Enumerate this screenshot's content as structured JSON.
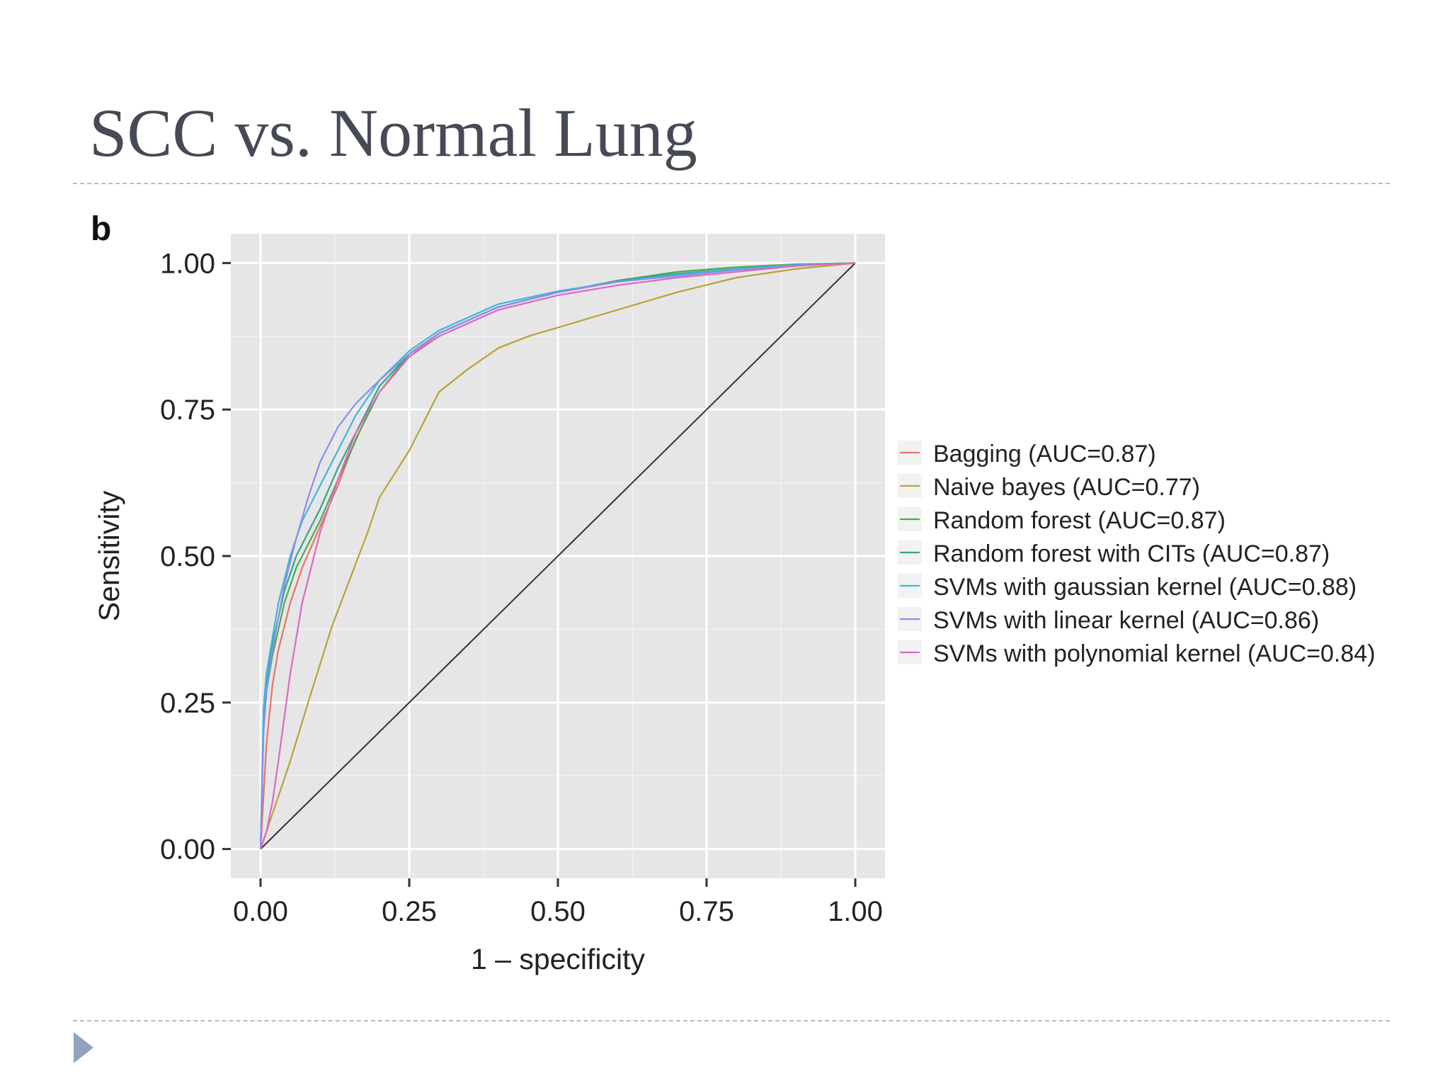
{
  "slide": {
    "title": "SCC vs. Normal Lung",
    "panel_label": "b"
  },
  "colors": {
    "panel_bg": "#e6e6e6",
    "grid_major": "#ffffff",
    "grid_minor": "#f2f2f2",
    "diagonal": "#333333",
    "rule": "#b4bcc8",
    "bullet": "#93a3bd"
  },
  "chart_data": {
    "type": "line",
    "xlabel": "1 – specificity",
    "ylabel": "Sensitivity",
    "xlim": [
      -0.05,
      1.05
    ],
    "ylim": [
      -0.05,
      1.05
    ],
    "xticks": [
      "0.00",
      "0.25",
      "0.50",
      "0.75",
      "1.00"
    ],
    "yticks": [
      "0.00",
      "0.25",
      "0.50",
      "0.75",
      "1.00"
    ],
    "grid": true,
    "legend_position": "right",
    "reference_line": {
      "x": [
        0,
        1
      ],
      "y": [
        0,
        1
      ]
    },
    "series": [
      {
        "name": "Bagging (AUC=0.87)",
        "color": "#e8746c",
        "x": [
          0,
          0.01,
          0.02,
          0.03,
          0.05,
          0.07,
          0.1,
          0.13,
          0.16,
          0.2,
          0.25,
          0.3,
          0.4,
          0.5,
          0.6,
          0.7,
          0.8,
          0.9,
          1.0
        ],
        "y": [
          0,
          0.18,
          0.28,
          0.34,
          0.42,
          0.48,
          0.55,
          0.62,
          0.7,
          0.78,
          0.84,
          0.88,
          0.925,
          0.95,
          0.968,
          0.98,
          0.99,
          0.997,
          1.0
        ]
      },
      {
        "name": "Naive bayes (AUC=0.77)",
        "color": "#b8a234",
        "x": [
          0,
          0.02,
          0.05,
          0.08,
          0.12,
          0.15,
          0.18,
          0.2,
          0.25,
          0.28,
          0.3,
          0.35,
          0.4,
          0.45,
          0.5,
          0.6,
          0.7,
          0.8,
          0.9,
          1.0
        ],
        "y": [
          0,
          0.06,
          0.15,
          0.25,
          0.38,
          0.46,
          0.54,
          0.6,
          0.68,
          0.74,
          0.78,
          0.82,
          0.855,
          0.875,
          0.89,
          0.92,
          0.95,
          0.975,
          0.99,
          1.0
        ]
      },
      {
        "name": "Random forest (AUC=0.87)",
        "color": "#4faa4a",
        "x": [
          0,
          0.005,
          0.01,
          0.02,
          0.04,
          0.06,
          0.1,
          0.13,
          0.17,
          0.2,
          0.25,
          0.3,
          0.4,
          0.5,
          0.6,
          0.7,
          0.8,
          0.9,
          1.0
        ],
        "y": [
          0,
          0.2,
          0.27,
          0.33,
          0.42,
          0.48,
          0.56,
          0.63,
          0.72,
          0.78,
          0.845,
          0.88,
          0.925,
          0.95,
          0.97,
          0.985,
          0.993,
          0.998,
          1.0
        ]
      },
      {
        "name": "Random forest with CITs (AUC=0.87)",
        "color": "#2fa886",
        "x": [
          0,
          0.005,
          0.01,
          0.02,
          0.04,
          0.06,
          0.1,
          0.13,
          0.17,
          0.2,
          0.25,
          0.3,
          0.4,
          0.5,
          0.6,
          0.7,
          0.8,
          0.9,
          1.0
        ],
        "y": [
          0,
          0.22,
          0.28,
          0.35,
          0.44,
          0.5,
          0.58,
          0.65,
          0.73,
          0.79,
          0.845,
          0.88,
          0.925,
          0.95,
          0.97,
          0.982,
          0.99,
          0.997,
          1.0
        ]
      },
      {
        "name": "SVMs with gaussian kernel (AUC=0.88)",
        "color": "#3fb6d6",
        "x": [
          0,
          0.005,
          0.01,
          0.02,
          0.03,
          0.05,
          0.07,
          0.1,
          0.13,
          0.16,
          0.2,
          0.25,
          0.3,
          0.4,
          0.5,
          0.6,
          0.7,
          0.8,
          0.9,
          1.0
        ],
        "y": [
          0,
          0.24,
          0.3,
          0.36,
          0.42,
          0.5,
          0.56,
          0.62,
          0.68,
          0.74,
          0.8,
          0.85,
          0.885,
          0.93,
          0.952,
          0.968,
          0.98,
          0.99,
          0.997,
          1.0
        ]
      },
      {
        "name": "SVMs with linear kernel (AUC=0.86)",
        "color": "#8a8ef0",
        "x": [
          0,
          0.005,
          0.01,
          0.02,
          0.04,
          0.06,
          0.08,
          0.1,
          0.13,
          0.16,
          0.2,
          0.25,
          0.3,
          0.4,
          0.5,
          0.6,
          0.7,
          0.8,
          0.9,
          1.0
        ],
        "y": [
          0,
          0.2,
          0.27,
          0.34,
          0.45,
          0.53,
          0.6,
          0.66,
          0.72,
          0.76,
          0.8,
          0.845,
          0.88,
          0.925,
          0.95,
          0.968,
          0.978,
          0.988,
          0.996,
          1.0
        ]
      },
      {
        "name": "SVMs with polynomial kernel (AUC=0.84)",
        "color": "#dd68c4",
        "x": [
          0,
          0.01,
          0.02,
          0.03,
          0.05,
          0.07,
          0.1,
          0.13,
          0.16,
          0.2,
          0.25,
          0.3,
          0.4,
          0.5,
          0.6,
          0.7,
          0.8,
          0.9,
          1.0
        ],
        "y": [
          0,
          0.03,
          0.08,
          0.15,
          0.3,
          0.42,
          0.54,
          0.63,
          0.71,
          0.78,
          0.84,
          0.875,
          0.92,
          0.945,
          0.962,
          0.975,
          0.985,
          0.995,
          1.0
        ]
      }
    ]
  }
}
